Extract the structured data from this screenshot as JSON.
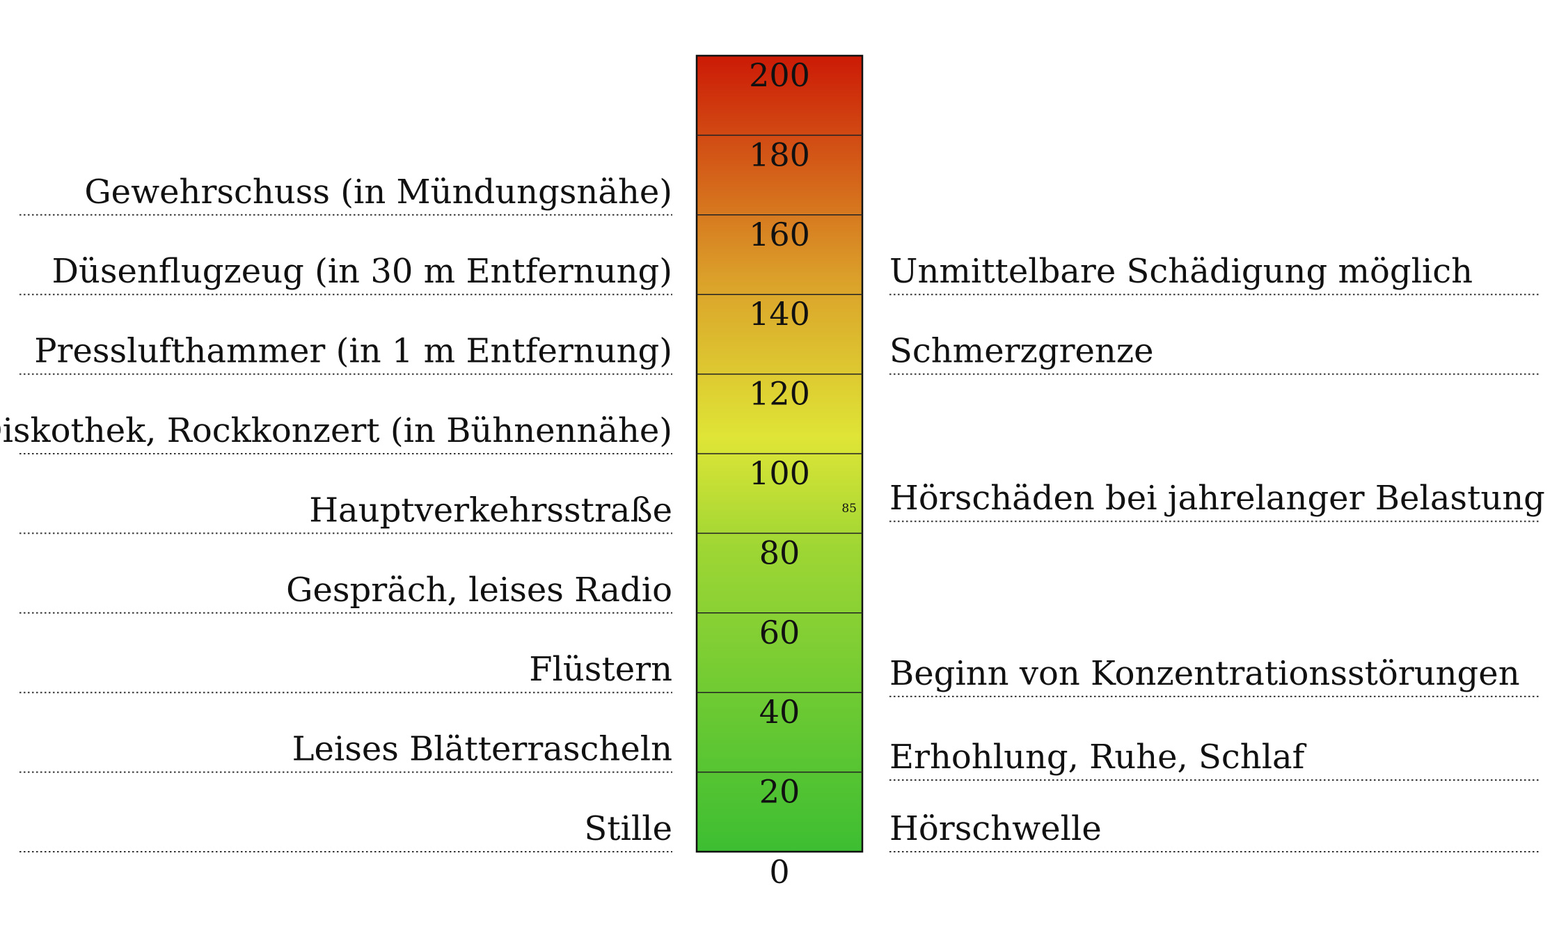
{
  "scale": {
    "min": 0,
    "max": 200,
    "step": 20,
    "ticks": [
      "0",
      "20",
      "40",
      "60",
      "80",
      "100",
      "120",
      "140",
      "160",
      "180",
      "200"
    ],
    "marker": {
      "value": 85,
      "label": "85"
    },
    "colors": {
      "bottom": "#3dbe32",
      "mid_low": "#9ed634",
      "mid": "#dfe536",
      "mid_high": "#dba02a",
      "top": "#cc1a06"
    }
  },
  "sources": [
    {
      "value": 10,
      "label": "Stille"
    },
    {
      "value": 30,
      "label": "Leises Blätterrascheln"
    },
    {
      "value": 50,
      "label": "Flüstern"
    },
    {
      "value": 70,
      "label": "Gespräch, leises Radio"
    },
    {
      "value": 90,
      "label": "Hauptverkehrsstraße"
    },
    {
      "value": 110,
      "label": "Diskothek, Rockkonzert (in Bühnennähe)"
    },
    {
      "value": 130,
      "label": "Presslufthammer (in 1 m Entfernung)"
    },
    {
      "value": 150,
      "label": "Düsenflugzeug (in 30 m Entfernung)"
    },
    {
      "value": 170,
      "label": "Gewehrschuss (in Mündungsnähe)"
    }
  ],
  "effects": [
    {
      "value": 0,
      "label": "Hörschwelle"
    },
    {
      "value": 18,
      "label": "Erhohlung, Ruhe, Schlaf"
    },
    {
      "value": 39,
      "label": "Beginn von Konzentrationsstörungen"
    },
    {
      "value": 83,
      "label": "Hörschäden bei jahrelanger Belastung"
    },
    {
      "value": 120,
      "label": "Schmerzgrenze"
    },
    {
      "value": 140,
      "label": "Unmittelbare Schädigung möglich"
    }
  ]
}
